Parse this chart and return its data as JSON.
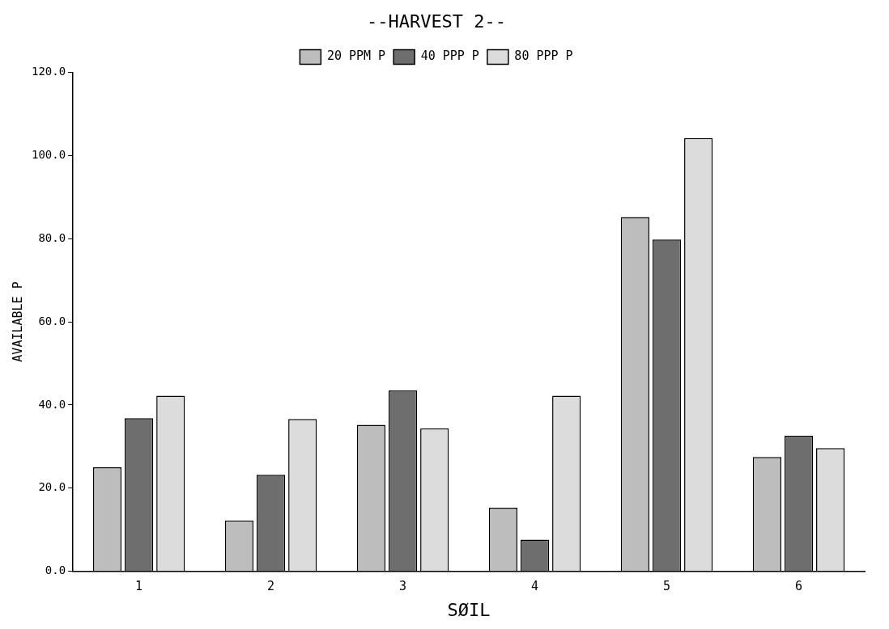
{
  "chart_data": {
    "type": "bar",
    "title": "--HARVEST 2--",
    "xlabel": "SØIL",
    "ylabel": "AVAILABLE P",
    "categories": [
      "1",
      "2",
      "3",
      "4",
      "5",
      "6"
    ],
    "series": [
      {
        "name": "20 PPM P",
        "color": "#bdbdbd",
        "values": [
          25.0,
          12.2,
          35.2,
          15.3,
          85.2,
          27.5
        ]
      },
      {
        "name": "40 PPP P",
        "color": "#6e6e6e",
        "values": [
          36.8,
          23.2,
          43.5,
          7.6,
          79.8,
          32.6
        ]
      },
      {
        "name": "80 PPP P",
        "color": "#dcdcdc",
        "values": [
          42.2,
          36.6,
          34.4,
          42.2,
          104.2,
          29.6
        ]
      }
    ],
    "ylim": [
      0,
      120
    ],
    "yticks": [
      {
        "value": 0,
        "label": "0.0"
      },
      {
        "value": 20,
        "label": "20.0"
      },
      {
        "value": 40,
        "label": "40.0"
      },
      {
        "value": 60,
        "label": "60.0"
      },
      {
        "value": 80,
        "label": "80.0"
      },
      {
        "value": 100,
        "label": "100.0"
      },
      {
        "value": 120,
        "label": "120.0"
      }
    ],
    "grid": false,
    "legend": "top"
  }
}
